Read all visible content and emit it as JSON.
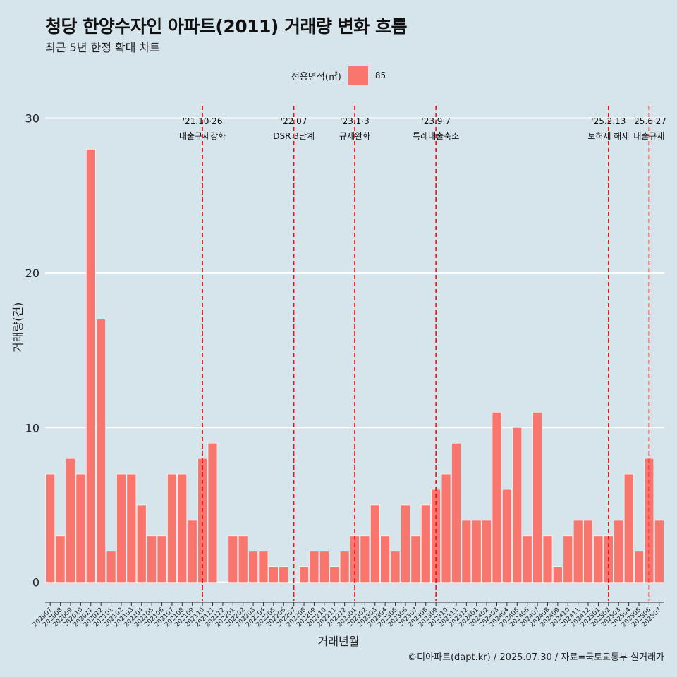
{
  "title": "청당 한양수자인 아파트(2011) 거래량 변화 흐름",
  "subtitle": "최근 5년 한정 확대 차트",
  "legend": {
    "title": "전용면적(㎡)",
    "label": "85",
    "color": "#F8766D"
  },
  "caption": "©디아파트(dapt.kr) / 2025.07.30 / 자료=국토교통부 실거래가",
  "chart_data": {
    "type": "bar",
    "title": "청당 한양수자인 아파트(2011) 거래량 변화 흐름",
    "subtitle": "최근 5년 한정 확대 차트",
    "xlabel": "거래년월",
    "ylabel": "거래량(건)",
    "ylim": [
      -1.2,
      30.8
    ],
    "yticks": [
      0,
      10,
      20,
      30
    ],
    "grid": "horizontal",
    "legend_position": "top",
    "bar_color": "#F8766D",
    "categories": [
      "202007",
      "202008",
      "202009",
      "202010",
      "202011",
      "202012",
      "202101",
      "202102",
      "202103",
      "202104",
      "202105",
      "202106",
      "202107",
      "202108",
      "202109",
      "202110",
      "202111",
      "202112",
      "202201",
      "202202",
      "202203",
      "202204",
      "202205",
      "202206",
      "202207",
      "202208",
      "202209",
      "202210",
      "202211",
      "202212",
      "202301",
      "202302",
      "202303",
      "202304",
      "202305",
      "202306",
      "202307",
      "202308",
      "202309",
      "202310",
      "202311",
      "202312",
      "202401",
      "202402",
      "202403",
      "202404",
      "202405",
      "202406",
      "202407",
      "202408",
      "202409",
      "202410",
      "202411",
      "202412",
      "202501",
      "202502",
      "202503",
      "202504",
      "202505",
      "202506",
      "202507"
    ],
    "series": [
      {
        "name": "85",
        "values": [
          7,
          3,
          8,
          7,
          28,
          17,
          2,
          7,
          7,
          5,
          3,
          3,
          7,
          7,
          4,
          8,
          9,
          0,
          3,
          3,
          2,
          2,
          1,
          1,
          0,
          1,
          2,
          2,
          1,
          2,
          3,
          3,
          5,
          3,
          2,
          5,
          3,
          5,
          6,
          7,
          9,
          4,
          4,
          4,
          11,
          6,
          10,
          3,
          11,
          3,
          1,
          3,
          4,
          4,
          3,
          3,
          4,
          7,
          2,
          8,
          4
        ]
      }
    ],
    "events": [
      {
        "category": "202110",
        "date": "'21.10·26",
        "label": "대출규제강화"
      },
      {
        "category": "202207",
        "date": "'22.07",
        "label": "DSR 3단계"
      },
      {
        "category": "202301",
        "date": "'23.1·3",
        "label": "규제완화"
      },
      {
        "category": "202309",
        "date": "'23.9·7",
        "label": "특례대출축소"
      },
      {
        "category": "202502",
        "date": "'25.2.13",
        "label": "토허제 해제"
      },
      {
        "category": "202506",
        "date": "'25.6·27",
        "label": "대출규제"
      }
    ]
  }
}
